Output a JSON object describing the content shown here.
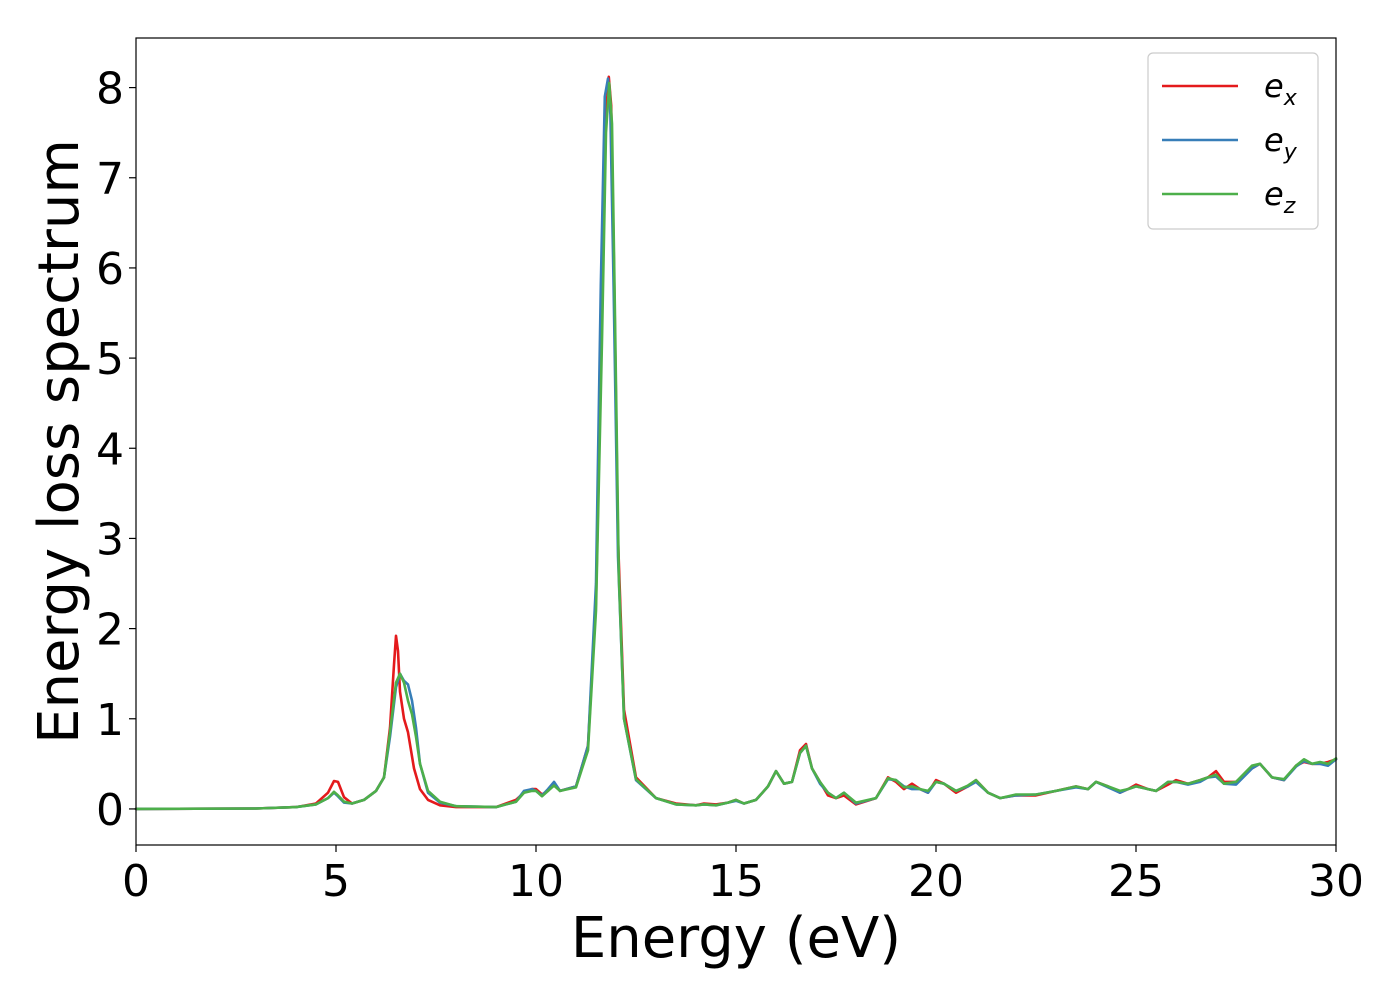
{
  "chart_data": {
    "type": "line",
    "title": "",
    "xlabel": "Energy (eV)",
    "ylabel": "Energy loss spectrum",
    "xlim": [
      0,
      30
    ],
    "ylim": [
      -0.4,
      8.55
    ],
    "xticks": [
      0,
      5,
      10,
      15,
      20,
      25,
      30
    ],
    "yticks": [
      0,
      1,
      2,
      3,
      4,
      5,
      6,
      7,
      8
    ],
    "grid": false,
    "legend_position": "top-right",
    "series": [
      {
        "name": "e_x",
        "legend_base": "e",
        "legend_sub": "x",
        "color": "#e41a1c",
        "x": [
          0,
          3,
          4,
          4.5,
          4.8,
          4.95,
          5.05,
          5.2,
          5.4,
          5.7,
          6.0,
          6.2,
          6.35,
          6.45,
          6.5,
          6.55,
          6.6,
          6.7,
          6.8,
          6.95,
          7.1,
          7.3,
          7.6,
          8.0,
          9.0,
          9.5,
          9.7,
          9.9,
          10.0,
          10.15,
          10.3,
          10.45,
          10.6,
          11.0,
          11.3,
          11.5,
          11.65,
          11.75,
          11.82,
          11.88,
          11.95,
          12.05,
          12.2,
          12.5,
          13.0,
          13.5,
          14.0,
          14.2,
          14.5,
          14.8,
          15.0,
          15.2,
          15.5,
          15.8,
          16.0,
          16.2,
          16.4,
          16.6,
          16.75,
          16.9,
          17.1,
          17.3,
          17.5,
          17.7,
          18.0,
          18.5,
          18.8,
          19.0,
          19.2,
          19.4,
          19.6,
          19.8,
          20.0,
          20.2,
          20.5,
          20.8,
          21.0,
          21.3,
          21.6,
          22.0,
          22.5,
          23.0,
          23.5,
          23.8,
          24.0,
          24.3,
          24.6,
          24.8,
          25.0,
          25.3,
          25.5,
          25.8,
          26.0,
          26.3,
          26.6,
          26.8,
          27.0,
          27.2,
          27.5,
          27.9,
          28.1,
          28.4,
          28.7,
          29.0,
          29.2,
          29.4,
          29.6,
          29.8,
          30.0
        ],
        "y": [
          0,
          0.005,
          0.02,
          0.06,
          0.18,
          0.31,
          0.3,
          0.13,
          0.06,
          0.1,
          0.2,
          0.35,
          0.9,
          1.6,
          1.92,
          1.75,
          1.3,
          1.0,
          0.85,
          0.45,
          0.22,
          0.1,
          0.04,
          0.02,
          0.02,
          0.1,
          0.18,
          0.22,
          0.22,
          0.16,
          0.2,
          0.28,
          0.2,
          0.25,
          0.7,
          2.3,
          5.5,
          7.7,
          8.12,
          7.8,
          6.0,
          3.0,
          1.1,
          0.35,
          0.12,
          0.06,
          0.04,
          0.06,
          0.05,
          0.07,
          0.1,
          0.06,
          0.1,
          0.25,
          0.42,
          0.28,
          0.3,
          0.65,
          0.72,
          0.45,
          0.3,
          0.15,
          0.12,
          0.15,
          0.05,
          0.12,
          0.35,
          0.3,
          0.22,
          0.28,
          0.22,
          0.18,
          0.32,
          0.28,
          0.18,
          0.25,
          0.32,
          0.18,
          0.12,
          0.15,
          0.15,
          0.2,
          0.25,
          0.22,
          0.3,
          0.25,
          0.18,
          0.22,
          0.27,
          0.22,
          0.2,
          0.27,
          0.32,
          0.28,
          0.32,
          0.35,
          0.42,
          0.3,
          0.3,
          0.45,
          0.5,
          0.35,
          0.32,
          0.48,
          0.52,
          0.5,
          0.5,
          0.52,
          0.55
        ]
      },
      {
        "name": "e_y",
        "legend_base": "e",
        "legend_sub": "y",
        "color": "#377eb8",
        "x": [
          0,
          3,
          4,
          4.5,
          4.8,
          4.95,
          5.05,
          5.2,
          5.4,
          5.7,
          6.0,
          6.2,
          6.35,
          6.5,
          6.6,
          6.7,
          6.8,
          6.9,
          7.0,
          7.1,
          7.3,
          7.6,
          8.0,
          9.0,
          9.5,
          9.7,
          9.9,
          10.0,
          10.15,
          10.3,
          10.45,
          10.6,
          11.0,
          11.3,
          11.5,
          11.62,
          11.72,
          11.8,
          11.86,
          11.94,
          12.05,
          12.2,
          12.5,
          13.0,
          13.5,
          14.0,
          14.2,
          14.5,
          14.8,
          15.0,
          15.2,
          15.5,
          15.8,
          16.0,
          16.2,
          16.4,
          16.6,
          16.75,
          16.9,
          17.1,
          17.3,
          17.5,
          17.7,
          18.0,
          18.5,
          18.8,
          19.0,
          19.2,
          19.4,
          19.6,
          19.8,
          20.0,
          20.2,
          20.5,
          20.8,
          21.0,
          21.3,
          21.6,
          22.0,
          22.5,
          23.0,
          23.5,
          23.8,
          24.0,
          24.3,
          24.6,
          24.8,
          25.0,
          25.3,
          25.5,
          25.8,
          26.0,
          26.3,
          26.6,
          26.8,
          27.0,
          27.2,
          27.5,
          27.9,
          28.1,
          28.4,
          28.7,
          29.0,
          29.2,
          29.4,
          29.6,
          29.8,
          30.0
        ],
        "y": [
          0,
          0.005,
          0.02,
          0.05,
          0.12,
          0.18,
          0.14,
          0.07,
          0.06,
          0.1,
          0.2,
          0.35,
          0.8,
          1.35,
          1.5,
          1.42,
          1.38,
          1.2,
          0.9,
          0.5,
          0.18,
          0.07,
          0.03,
          0.02,
          0.08,
          0.2,
          0.22,
          0.2,
          0.15,
          0.22,
          0.3,
          0.2,
          0.25,
          0.7,
          2.5,
          5.8,
          7.9,
          8.1,
          7.7,
          5.8,
          2.8,
          1.0,
          0.32,
          0.12,
          0.05,
          0.04,
          0.05,
          0.04,
          0.07,
          0.09,
          0.06,
          0.1,
          0.25,
          0.42,
          0.28,
          0.3,
          0.62,
          0.7,
          0.45,
          0.28,
          0.18,
          0.12,
          0.18,
          0.06,
          0.12,
          0.33,
          0.32,
          0.25,
          0.22,
          0.22,
          0.18,
          0.3,
          0.28,
          0.2,
          0.25,
          0.3,
          0.18,
          0.12,
          0.15,
          0.16,
          0.2,
          0.24,
          0.22,
          0.3,
          0.24,
          0.18,
          0.22,
          0.25,
          0.22,
          0.2,
          0.3,
          0.3,
          0.27,
          0.3,
          0.35,
          0.36,
          0.28,
          0.27,
          0.45,
          0.5,
          0.35,
          0.32,
          0.47,
          0.53,
          0.5,
          0.5,
          0.48,
          0.55
        ]
      },
      {
        "name": "e_z",
        "legend_base": "e",
        "legend_sub": "z",
        "color": "#4daf4a",
        "x": [
          0,
          3,
          4,
          4.5,
          4.8,
          4.95,
          5.05,
          5.2,
          5.4,
          5.7,
          6.0,
          6.2,
          6.35,
          6.5,
          6.6,
          6.7,
          6.8,
          6.9,
          7.0,
          7.1,
          7.3,
          7.6,
          8.0,
          9.0,
          9.5,
          9.7,
          9.9,
          10.0,
          10.15,
          10.3,
          10.45,
          10.6,
          11.0,
          11.3,
          11.5,
          11.65,
          11.75,
          11.83,
          11.9,
          11.97,
          12.07,
          12.2,
          12.5,
          13.0,
          13.5,
          14.0,
          14.2,
          14.5,
          14.8,
          15.0,
          15.2,
          15.5,
          15.8,
          16.0,
          16.2,
          16.4,
          16.6,
          16.75,
          16.9,
          17.1,
          17.3,
          17.5,
          17.7,
          18.0,
          18.5,
          18.8,
          19.0,
          19.2,
          19.4,
          19.6,
          19.8,
          20.0,
          20.2,
          20.5,
          20.8,
          21.0,
          21.3,
          21.6,
          22.0,
          22.5,
          23.0,
          23.5,
          23.8,
          24.0,
          24.3,
          24.6,
          24.8,
          25.0,
          25.3,
          25.5,
          25.8,
          26.0,
          26.3,
          26.6,
          26.8,
          27.0,
          27.2,
          27.5,
          27.9,
          28.1,
          28.4,
          28.7,
          29.0,
          29.2,
          29.4,
          29.6,
          29.8,
          30.0
        ],
        "y": [
          0,
          0.005,
          0.02,
          0.05,
          0.12,
          0.19,
          0.15,
          0.08,
          0.06,
          0.1,
          0.2,
          0.35,
          0.85,
          1.4,
          1.5,
          1.4,
          1.2,
          1.05,
          0.8,
          0.5,
          0.2,
          0.08,
          0.03,
          0.02,
          0.08,
          0.18,
          0.2,
          0.2,
          0.14,
          0.2,
          0.26,
          0.2,
          0.24,
          0.65,
          2.2,
          5.2,
          7.5,
          8.05,
          7.6,
          5.6,
          2.6,
          1.0,
          0.33,
          0.12,
          0.05,
          0.04,
          0.05,
          0.04,
          0.07,
          0.1,
          0.06,
          0.1,
          0.25,
          0.42,
          0.28,
          0.3,
          0.62,
          0.7,
          0.45,
          0.3,
          0.18,
          0.12,
          0.18,
          0.07,
          0.12,
          0.34,
          0.32,
          0.24,
          0.25,
          0.22,
          0.2,
          0.3,
          0.28,
          0.2,
          0.26,
          0.32,
          0.18,
          0.12,
          0.16,
          0.16,
          0.2,
          0.25,
          0.22,
          0.3,
          0.25,
          0.2,
          0.22,
          0.25,
          0.22,
          0.2,
          0.3,
          0.3,
          0.28,
          0.32,
          0.35,
          0.38,
          0.28,
          0.3,
          0.48,
          0.5,
          0.35,
          0.33,
          0.48,
          0.55,
          0.5,
          0.52,
          0.5,
          0.56
        ]
      }
    ]
  }
}
